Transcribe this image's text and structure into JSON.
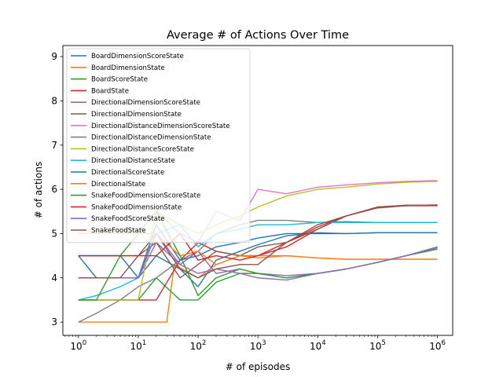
{
  "chart_data": {
    "type": "line",
    "title": "Average # of Actions Over Time",
    "xlabel": "# of episodes",
    "ylabel": "# of actions",
    "xscale": "log",
    "xlim": [
      0.55,
      1800000
    ],
    "ylim": [
      2.7,
      9.25
    ],
    "x_ticks": [
      1,
      10,
      100,
      1000,
      10000,
      100000,
      1000000
    ],
    "x_tick_base": "10",
    "x_tick_exponents": [
      "0",
      "1",
      "2",
      "3",
      "4",
      "5",
      "6"
    ],
    "y_ticks": [
      3,
      4,
      5,
      6,
      7,
      8,
      9
    ],
    "y_tick_labels": [
      "3",
      "4",
      "5",
      "6",
      "7",
      "8",
      "9"
    ],
    "grid": false,
    "legend_position": "upper-left",
    "series": [
      {
        "name": "BoardDimensionScoreState",
        "color": "#1f77b4",
        "x": [
          1,
          2,
          5,
          10,
          20,
          50,
          100,
          200,
          500,
          1000,
          3000,
          10000,
          30000,
          100000,
          300000,
          1000000
        ],
        "y": [
          4.5,
          4.0,
          4.0,
          4.0,
          4.5,
          4.2,
          3.8,
          4.4,
          4.6,
          4.75,
          4.95,
          5.02,
          5.0,
          5.02,
          5.02,
          5.02
        ]
      },
      {
        "name": "BoardDimensionState",
        "color": "#ff7f0e",
        "x": [
          1,
          2,
          5,
          10,
          30,
          40,
          100,
          200,
          500,
          1000,
          3000,
          10000,
          30000,
          100000,
          300000,
          1000000
        ],
        "y": [
          3.0,
          3.0,
          3.0,
          3.0,
          3.0,
          4.3,
          4.0,
          4.3,
          4.5,
          4.45,
          4.5,
          4.45,
          4.42,
          4.42,
          4.42,
          4.42
        ]
      },
      {
        "name": "BoardScoreState",
        "color": "#2ca02c",
        "x": [
          1,
          2,
          5,
          10,
          20,
          50,
          100,
          200,
          500,
          1000,
          3000,
          10000,
          30000,
          100000,
          300000,
          1000000
        ],
        "y": [
          3.5,
          3.5,
          3.5,
          3.5,
          4.0,
          3.5,
          3.5,
          3.9,
          4.1,
          4.1,
          4.0,
          4.1,
          4.2,
          4.35,
          4.5,
          4.65
        ]
      },
      {
        "name": "BoardState",
        "color": "#d62728",
        "x": [
          1,
          2,
          5,
          10,
          20,
          50,
          100,
          200,
          500,
          1000,
          3000,
          10000,
          30000,
          100000,
          300000,
          1000000
        ],
        "y": [
          3.5,
          3.5,
          3.5,
          3.5,
          3.5,
          4.4,
          4.8,
          4.6,
          4.5,
          4.5,
          4.7,
          5.1,
          5.4,
          5.6,
          5.63,
          5.63
        ]
      },
      {
        "name": "DirectionalDimensionScoreState",
        "color": "#9467bd",
        "x": [
          1,
          2,
          5,
          10,
          20,
          50,
          100,
          200,
          500,
          1000,
          3000,
          10000,
          30000,
          100000,
          300000,
          1000000
        ],
        "y": [
          4.0,
          4.0,
          4.0,
          4.0,
          4.8,
          4.3,
          4.6,
          4.1,
          4.2,
          4.1,
          4.05,
          4.1,
          4.2,
          4.35,
          4.5,
          4.7
        ]
      },
      {
        "name": "DirectionalDimensionState",
        "color": "#8c564b",
        "x": [
          1,
          2,
          5,
          10,
          20,
          50,
          100,
          200,
          500,
          1000,
          3000,
          10000,
          30000,
          100000,
          300000,
          1000000
        ],
        "y": [
          4.5,
          4.5,
          4.5,
          4.5,
          4.8,
          4.0,
          4.3,
          4.6,
          4.5,
          4.7,
          4.8,
          5.1,
          5.4,
          5.58,
          5.63,
          5.65
        ]
      },
      {
        "name": "DirectionalDistanceDimensionScoreState",
        "color": "#e377c2",
        "x": [
          1,
          2,
          5,
          10,
          20,
          50,
          100,
          200,
          500,
          1000,
          3000,
          10000,
          30000,
          100000,
          300000,
          1000000
        ],
        "y": [
          5.0,
          5.0,
          5.0,
          5.0,
          5.5,
          5.0,
          4.8,
          5.5,
          5.3,
          6.0,
          5.9,
          6.05,
          6.1,
          6.15,
          6.18,
          6.2
        ]
      },
      {
        "name": "DirectionalDistanceDimensionState",
        "color": "#7f7f7f",
        "x": [
          1,
          2,
          5,
          10,
          20,
          50,
          100,
          200,
          500,
          1000,
          3000,
          10000,
          30000,
          100000,
          300000,
          1000000
        ],
        "y": [
          3.0,
          3.2,
          3.5,
          3.8,
          4.0,
          4.4,
          4.6,
          5.0,
          5.2,
          5.3,
          5.3,
          5.25,
          5.27,
          5.25,
          5.25,
          5.25
        ]
      },
      {
        "name": "DirectionalDistanceScoreState",
        "color": "#bcbd22",
        "x": [
          1,
          2,
          5,
          10,
          20,
          50,
          100,
          200,
          500,
          1000,
          3000,
          10000,
          30000,
          100000,
          300000,
          1000000
        ],
        "y": [
          3.5,
          3.5,
          3.5,
          3.5,
          5.5,
          5.2,
          5.0,
          5.2,
          5.4,
          5.6,
          5.85,
          6.0,
          6.05,
          6.12,
          6.16,
          6.18
        ]
      },
      {
        "name": "DirectionalDistanceState",
        "color": "#17becf",
        "x": [
          1,
          2,
          5,
          10,
          20,
          50,
          100,
          200,
          500,
          1000,
          3000,
          10000,
          30000,
          100000,
          300000,
          1000000
        ],
        "y": [
          3.5,
          3.6,
          3.8,
          4.0,
          5.0,
          5.2,
          4.7,
          5.0,
          5.1,
          5.2,
          5.2,
          5.25,
          5.25,
          5.25,
          5.25,
          5.25
        ]
      },
      {
        "name": "DirectionalScoreState",
        "color": "#1f77b4",
        "x": [
          1,
          2,
          5,
          10,
          20,
          50,
          100,
          200,
          500,
          1000,
          3000,
          10000,
          30000,
          100000,
          300000,
          1000000
        ],
        "y": [
          4.5,
          4.5,
          4.5,
          4.0,
          5.2,
          4.4,
          4.5,
          4.7,
          4.8,
          4.9,
          5.0,
          5.0,
          5.0,
          5.02,
          5.02,
          5.02
        ]
      },
      {
        "name": "DirectionalState",
        "color": "#ff7f0e",
        "x": [
          1,
          2,
          5,
          10,
          20,
          50,
          100,
          200,
          500,
          1000,
          3000,
          10000,
          30000,
          100000,
          300000,
          1000000
        ],
        "y": [
          5.0,
          5.0,
          5.0,
          5.0,
          5.0,
          4.5,
          4.6,
          4.3,
          4.5,
          4.5,
          4.5,
          4.45,
          4.42,
          4.42,
          4.42,
          4.42
        ]
      },
      {
        "name": "SnakeFoodDimensionScoreState",
        "color": "#2ca02c",
        "x": [
          1,
          2,
          5,
          10,
          20,
          50,
          100,
          200,
          500,
          1000,
          3000,
          10000,
          30000,
          100000,
          300000,
          1000000
        ],
        "y": [
          3.5,
          3.5,
          4.5,
          5.0,
          5.5,
          4.5,
          3.6,
          4.0,
          4.2,
          4.1,
          4.0,
          4.1,
          4.2,
          4.35,
          4.5,
          4.68
        ]
      },
      {
        "name": "SnakeFoodDimensionState",
        "color": "#d62728",
        "x": [
          1,
          2,
          5,
          10,
          20,
          50,
          100,
          200,
          500,
          1000,
          3000,
          10000,
          30000,
          100000,
          300000,
          1000000
        ],
        "y": [
          4.5,
          4.5,
          4.5,
          4.5,
          4.5,
          5.0,
          4.4,
          4.5,
          4.4,
          4.5,
          4.8,
          5.15,
          5.4,
          5.6,
          5.64,
          5.64
        ]
      },
      {
        "name": "SnakeFoodScoreState",
        "color": "#9467bd",
        "x": [
          1,
          2,
          5,
          10,
          20,
          50,
          100,
          200,
          500,
          1000,
          3000,
          10000,
          30000,
          100000,
          300000,
          1000000
        ],
        "y": [
          4.0,
          4.0,
          4.0,
          4.0,
          5.0,
          4.3,
          4.1,
          4.2,
          4.1,
          4.0,
          3.95,
          4.1,
          4.2,
          4.35,
          4.5,
          4.68
        ]
      },
      {
        "name": "SnakeFoodState",
        "color": "#8c564b",
        "x": [
          1,
          2,
          5,
          10,
          20,
          50,
          100,
          200,
          500,
          1000,
          3000,
          10000,
          30000,
          100000,
          300000,
          1000000
        ],
        "y": [
          4.0,
          4.0,
          4.0,
          4.5,
          5.0,
          4.2,
          4.0,
          4.2,
          4.3,
          4.3,
          4.8,
          5.2,
          5.4,
          5.6,
          5.64,
          5.64
        ]
      }
    ]
  }
}
